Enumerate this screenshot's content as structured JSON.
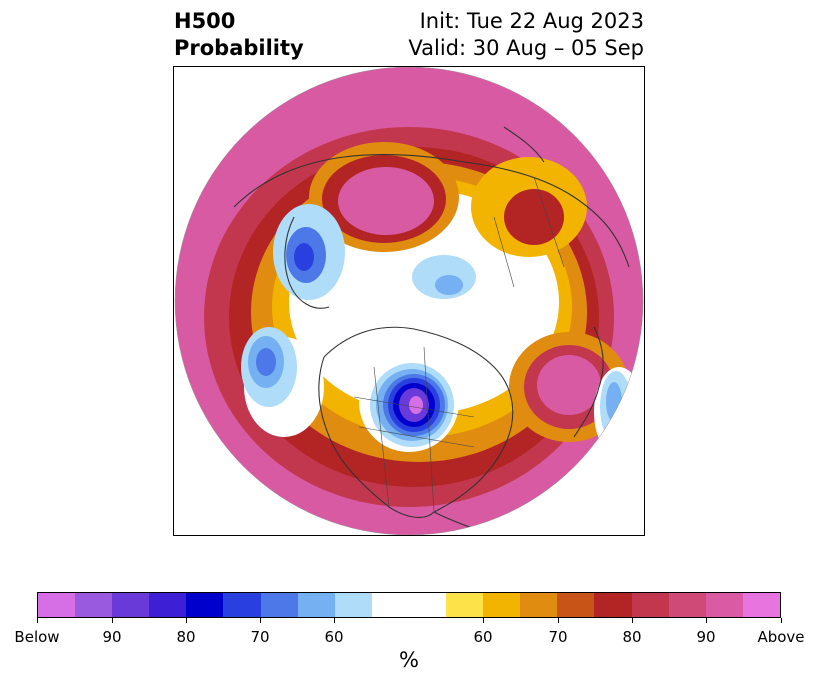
{
  "title": {
    "left_line1": "H500",
    "left_line2": "Probability",
    "right_line1": "Init: Tue 22 Aug 2023",
    "right_line2": "Valid: 30 Aug – 05 Sep"
  },
  "colorbar": {
    "colors": [
      "#d66ee6",
      "#9a5ae0",
      "#6a3ad8",
      "#3d1fd6",
      "#0000cc",
      "#2a3fe0",
      "#4c78e8",
      "#75b0f2",
      "#afdcf8",
      "#ffffff",
      "#ffffff",
      "#fde24a",
      "#f2b400",
      "#e08c10",
      "#c85418",
      "#b32424",
      "#c2374e",
      "#d04a78",
      "#da5aa4",
      "#e874e0"
    ],
    "tick_labels": [
      "Below",
      "90",
      "80",
      "70",
      "60",
      "60",
      "70",
      "80",
      "90",
      "Above"
    ],
    "unit": "%"
  },
  "map": {
    "projection": "polar stereographic (Northern Hemisphere)",
    "fill_colors": {
      "above_extreme": "#d85aa2",
      "above_high": "#c2374e",
      "above_mid": "#b32424",
      "above_lowmid": "#e08c10",
      "above_low": "#f2b400",
      "above_min": "#fde24a",
      "neutral": "#ffffff",
      "below_min": "#afdcf8",
      "below_low": "#75b0f2",
      "below_lowmid": "#4c78e8",
      "below_mid": "#2a3fe0",
      "below_high": "#0000cc",
      "below_extreme": "#6a3ad8",
      "below_max": "#d66ee6"
    }
  }
}
